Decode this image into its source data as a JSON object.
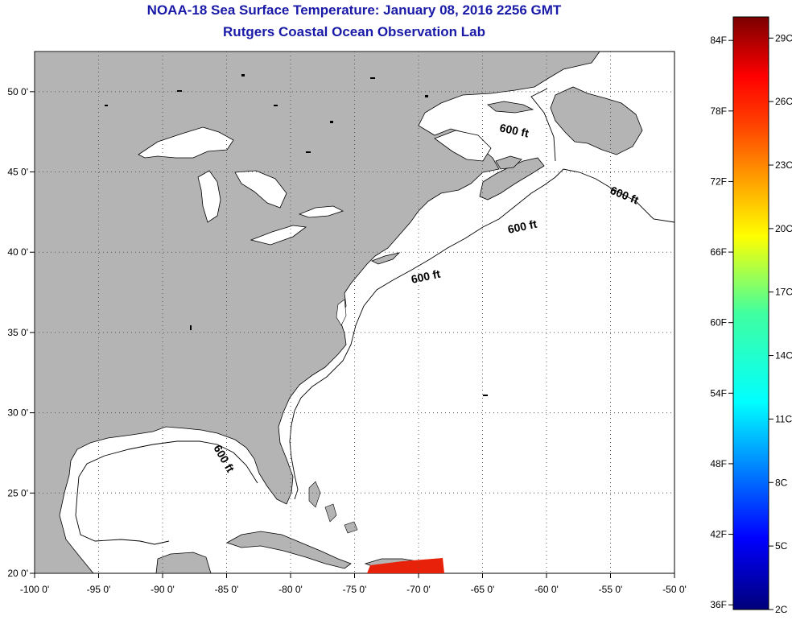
{
  "title": "NOAA-18 Sea Surface Temperature:  January 08, 2016 2256 GMT",
  "subtitle": "Rutgers Coastal Ocean Observation Lab",
  "lon_ticks": [
    {
      "value": -100,
      "label": "-100 0'"
    },
    {
      "value": -95,
      "label": "-95 0'"
    },
    {
      "value": -90,
      "label": "-90 0'"
    },
    {
      "value": -85,
      "label": "-85 0'"
    },
    {
      "value": -80,
      "label": "-80 0'"
    },
    {
      "value": -75,
      "label": "-75 0'"
    },
    {
      "value": -70,
      "label": "-70 0'"
    },
    {
      "value": -65,
      "label": "-65 0'"
    },
    {
      "value": -60,
      "label": "-60 0'"
    },
    {
      "value": -55,
      "label": "-55 0'"
    },
    {
      "value": -50,
      "label": "-50 0'"
    }
  ],
  "lat_ticks": [
    {
      "value": 20,
      "label": "20 0'"
    },
    {
      "value": 25,
      "label": "25 0'"
    },
    {
      "value": 30,
      "label": "30 0'"
    },
    {
      "value": 35,
      "label": "35 0'"
    },
    {
      "value": 40,
      "label": "40 0'"
    },
    {
      "value": 45,
      "label": "45 0'"
    },
    {
      "value": 50,
      "label": "50 0'"
    }
  ],
  "lon_range": [
    -100,
    -50
  ],
  "lat_range": [
    20,
    52.5
  ],
  "contour_label": "600 ft",
  "colorbar": {
    "min_c": 2,
    "max_c": 30,
    "f_labels": [
      "36F",
      "42F",
      "48F",
      "54F",
      "60F",
      "66F",
      "72F",
      "78F",
      "84F"
    ],
    "c_labels": [
      "2C",
      "5C",
      "8C",
      "11C",
      "14C",
      "17C",
      "20C",
      "23C",
      "26C",
      "29C"
    ]
  },
  "colors": {
    "land": "#b4b4b4",
    "ocean": "#ffffff",
    "title": "#1a1aa8",
    "sst_patch": "#e8220a"
  }
}
